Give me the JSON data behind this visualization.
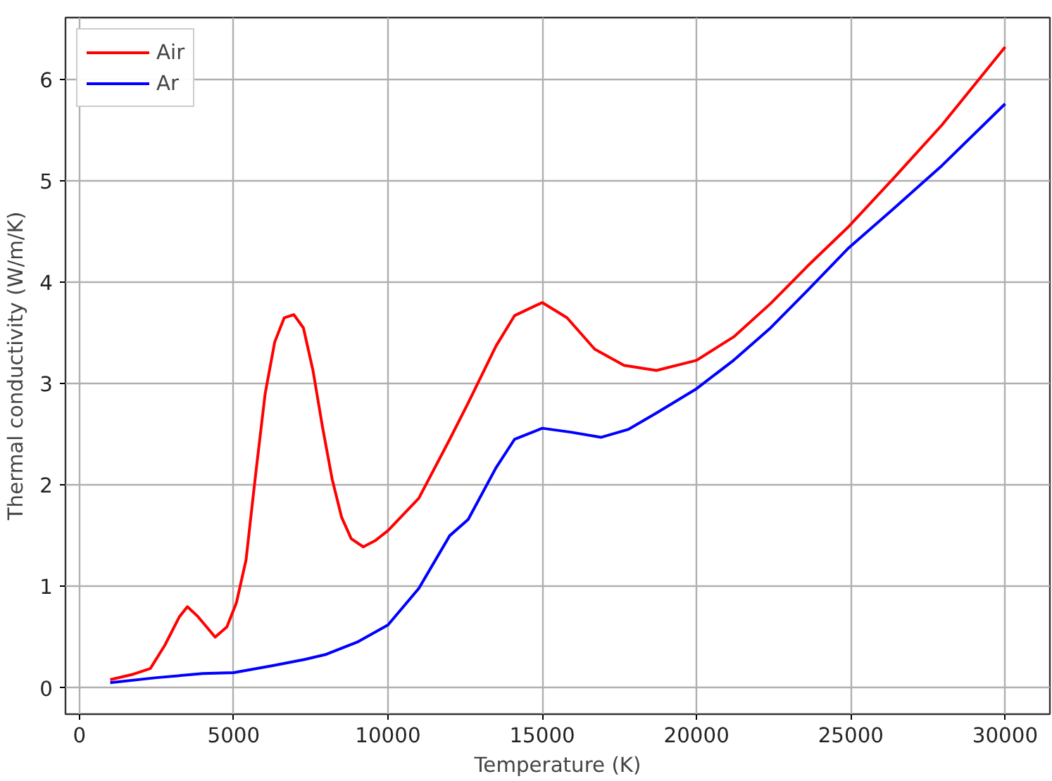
{
  "chart_data": {
    "type": "line",
    "xlabel": "Temperature (K)",
    "ylabel": "Thermal conductivity (W/m/K)",
    "xlim": [
      -450,
      31450
    ],
    "ylim": [
      -0.26,
      6.61
    ],
    "xticks": [
      0,
      5000,
      10000,
      15000,
      20000,
      25000,
      30000
    ],
    "yticks": [
      0,
      1,
      2,
      3,
      4,
      5,
      6
    ],
    "grid": true,
    "legend": "top left",
    "marker": "none",
    "line_style": "solid",
    "series": [
      {
        "name": "Air",
        "color": "#ff0000",
        "x": [
          1000,
          1700,
          2300,
          2770,
          3240,
          3500,
          3850,
          4400,
          4780,
          5090,
          5400,
          5710,
          6020,
          6330,
          6640,
          6950,
          7260,
          7570,
          7880,
          8190,
          8500,
          8810,
          9200,
          9580,
          10000,
          11000,
          12000,
          12600,
          13500,
          14100,
          15000,
          15800,
          16700,
          17650,
          18700,
          20000,
          21200,
          22400,
          23600,
          24900,
          26400,
          27950,
          30000
        ],
        "values": [
          0.08,
          0.13,
          0.19,
          0.42,
          0.7,
          0.8,
          0.7,
          0.5,
          0.6,
          0.84,
          1.26,
          2.1,
          2.9,
          3.41,
          3.65,
          3.68,
          3.55,
          3.13,
          2.57,
          2.06,
          1.68,
          1.47,
          1.39,
          1.45,
          1.55,
          1.87,
          2.45,
          2.81,
          3.37,
          3.67,
          3.8,
          3.65,
          3.34,
          3.18,
          3.13,
          3.23,
          3.46,
          3.79,
          4.16,
          4.54,
          5.03,
          5.55,
          6.32
        ]
      },
      {
        "name": "Ar",
        "color": "#0000ff",
        "x": [
          1000,
          2500,
          4000,
          5000,
          6300,
          7300,
          8000,
          9000,
          10000,
          11000,
          12000,
          12600,
          13500,
          14100,
          15000,
          15950,
          16900,
          17800,
          18700,
          20000,
          21200,
          22400,
          23600,
          24900,
          26400,
          27950,
          30000
        ],
        "values": [
          0.05,
          0.1,
          0.14,
          0.15,
          0.22,
          0.28,
          0.33,
          0.45,
          0.62,
          0.98,
          1.5,
          1.66,
          2.17,
          2.45,
          2.56,
          2.52,
          2.47,
          2.55,
          2.71,
          2.95,
          3.23,
          3.55,
          3.92,
          4.33,
          4.73,
          5.15,
          5.76
        ]
      }
    ]
  }
}
